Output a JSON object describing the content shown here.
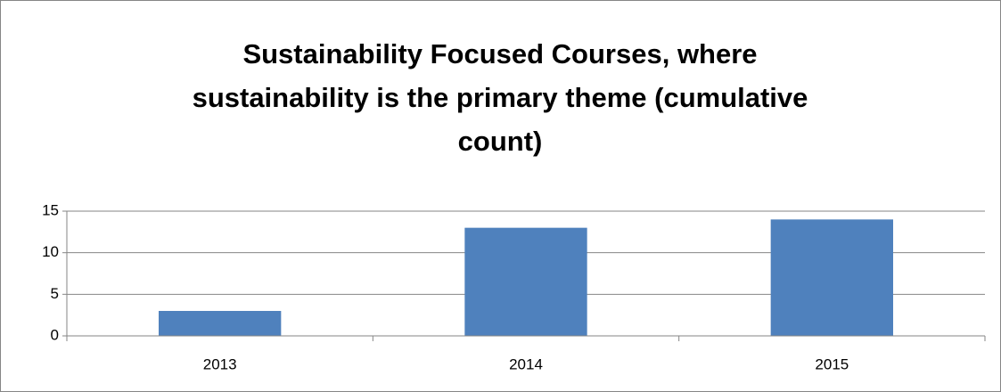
{
  "chart_data": {
    "type": "bar",
    "title": "Sustainability Focused Courses, where sustainability is the primary theme (cumulative count)",
    "categories": [
      "2013",
      "2014",
      "2015"
    ],
    "values": [
      3,
      13,
      14
    ],
    "color": "#4f81bd",
    "ylim": [
      0,
      15
    ],
    "yticks": [
      0,
      5,
      10,
      15
    ],
    "grid": true
  }
}
